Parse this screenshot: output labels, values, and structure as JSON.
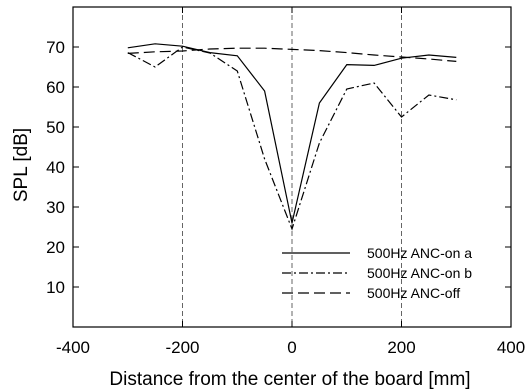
{
  "chart_data": {
    "type": "line",
    "title": "",
    "xlabel": "Distance from the center of the board [mm]",
    "ylabel": "SPL [dB]",
    "xlim": [
      -400,
      400
    ],
    "ylim": [
      0,
      80
    ],
    "xticks": [
      -400,
      -200,
      0,
      200,
      400
    ],
    "yticks": [
      10,
      20,
      30,
      40,
      50,
      60,
      70
    ],
    "xtick_labels": [
      "-400",
      "-200",
      "0",
      "200",
      "400"
    ],
    "ytick_labels": [
      "10",
      "20",
      "30",
      "40",
      "50",
      "60",
      "70"
    ],
    "vertical_dashed_guides": [
      -200,
      0,
      200
    ],
    "grid": false,
    "legend_position": "bottom-right",
    "series": [
      {
        "name": "500Hz ANC-on a",
        "style": "solid",
        "x": [
          -300,
          -250,
          -200,
          -150,
          -100,
          -50,
          0,
          50,
          100,
          150,
          200,
          250,
          300
        ],
        "y": [
          69.8,
          70.8,
          70.2,
          68.6,
          67.8,
          59.0,
          26.0,
          56.0,
          65.6,
          65.4,
          67.2,
          68.0,
          67.4
        ]
      },
      {
        "name": "500Hz ANC-on b",
        "style": "dashdot",
        "x": [
          -300,
          -250,
          -200,
          -150,
          -100,
          -50,
          0,
          50,
          100,
          150,
          200,
          250,
          300
        ],
        "y": [
          68.6,
          65.0,
          70.0,
          68.5,
          64.0,
          42.0,
          24.5,
          46.0,
          59.5,
          61.0,
          52.5,
          58.0,
          56.8
        ]
      },
      {
        "name": "500Hz ANC-off",
        "style": "dashed",
        "x": [
          -300,
          -250,
          -200,
          -150,
          -100,
          -50,
          0,
          50,
          100,
          150,
          200,
          250,
          300
        ],
        "y": [
          68.4,
          68.8,
          69.0,
          69.5,
          69.7,
          69.7,
          69.4,
          69.1,
          68.6,
          68.0,
          67.5,
          67.0,
          66.4
        ]
      }
    ],
    "colors": {
      "line": "#000000",
      "frame": "#000000",
      "guide": "#555555"
    }
  }
}
